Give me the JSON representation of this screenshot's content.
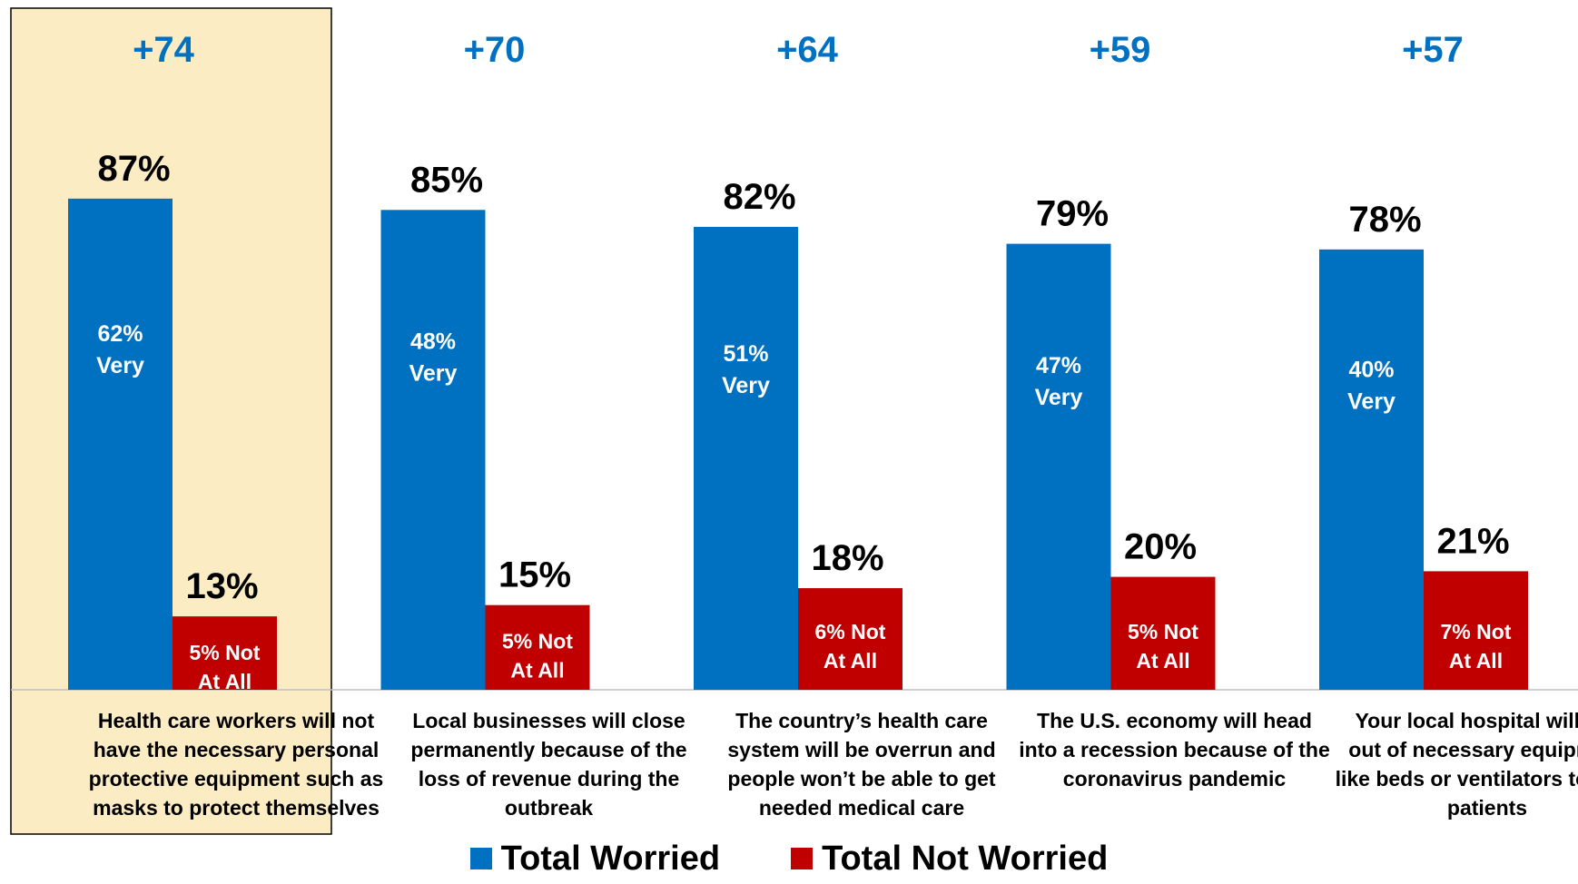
{
  "colors": {
    "worried": "#0070c0",
    "not_worried": "#c00000",
    "net": "#0070c0",
    "highlight_fill": "#fcecc4",
    "bar_label_inner": "#ffffff",
    "text": "#000000"
  },
  "legend": [
    {
      "label": "Total Worried",
      "color": "#0070c0"
    },
    {
      "label": "Total Not Worried",
      "color": "#c00000"
    }
  ],
  "chart_data": {
    "type": "bar",
    "ylim": [
      0,
      100
    ],
    "highlighted_category": 0,
    "categories": [
      [
        "Health care workers will not",
        "have the necessary personal",
        "protective equipment such as",
        "masks to protect themselves"
      ],
      [
        "Local businesses will close",
        "permanently because of the",
        "loss of revenue during the",
        "outbreak"
      ],
      [
        "The country’s health care",
        "system will be overrun and",
        "people won’t be able to get",
        "needed medical care"
      ],
      [
        "The U.S. economy will head",
        "into a recession because of the",
        "coronavirus pandemic"
      ],
      [
        "Your local hospital will run",
        "out of necessary equipment",
        "like beds or ventilators to treat",
        "patients"
      ]
    ],
    "net": [
      "+74",
      "+70",
      "+64",
      "+59",
      "+57"
    ],
    "series": [
      {
        "name": "Total Worried",
        "values": [
          87,
          85,
          82,
          79,
          78
        ],
        "labels": [
          "87%",
          "85%",
          "82%",
          "79%",
          "78%"
        ],
        "inner_labels": [
          [
            "62%",
            "Very"
          ],
          [
            "48%",
            "Very"
          ],
          [
            "51%",
            "Very"
          ],
          [
            "47%",
            "Very"
          ],
          [
            "40%",
            "Very"
          ]
        ]
      },
      {
        "name": "Total Not Worried",
        "values": [
          13,
          15,
          18,
          20,
          21
        ],
        "labels": [
          "13%",
          "15%",
          "18%",
          "20%",
          "21%"
        ],
        "inner_labels": [
          [
            "5% Not",
            "At All"
          ],
          [
            "5% Not",
            "At All"
          ],
          [
            "6% Not",
            "At All"
          ],
          [
            "5% Not",
            "At All"
          ],
          [
            "7% Not",
            "At All"
          ]
        ]
      }
    ]
  }
}
